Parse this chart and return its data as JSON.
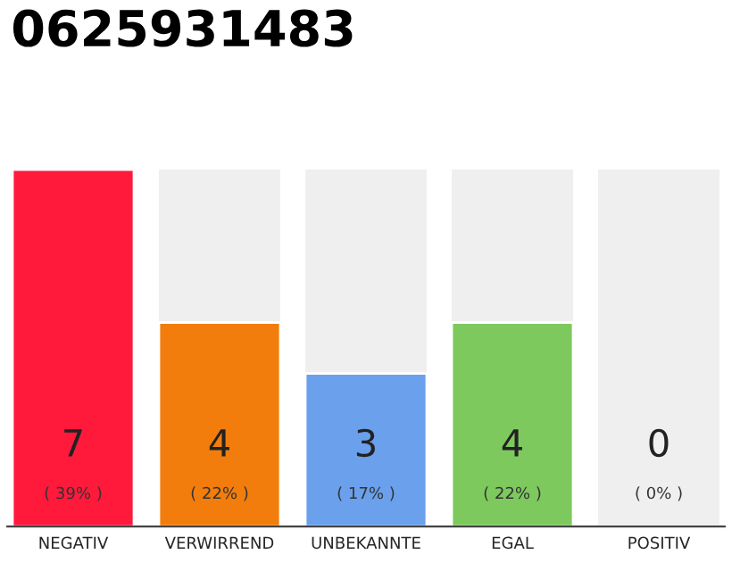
{
  "chart_data": {
    "type": "bar",
    "title": "0625931483",
    "categories": [
      "NEGATIV",
      "VERWIRREND",
      "UNBEKANNTE",
      "EGAL",
      "POSITIV"
    ],
    "values": [
      7,
      4,
      3,
      4,
      0
    ],
    "colors": [
      "#ff1a3c",
      "#f27d0c",
      "#6aa0ec",
      "#7dc95e",
      null
    ],
    "value_labels": [
      "7\n( 39% )",
      "4\n( 22% )",
      "3\n( 17% )",
      "4\n( 22% )",
      "0\n( 0% )"
    ],
    "grid": false,
    "legend": false
  }
}
